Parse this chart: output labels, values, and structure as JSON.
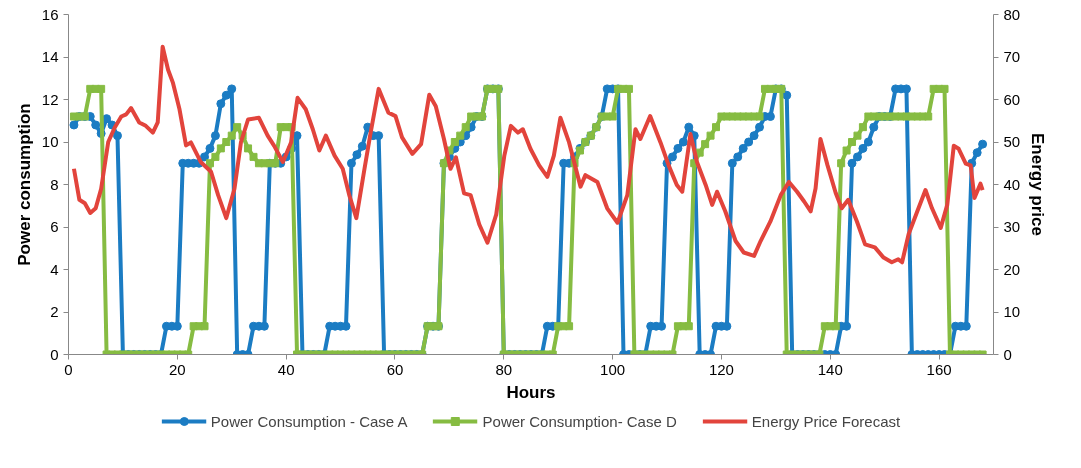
{
  "chart_data": {
    "type": "line",
    "xlabel": "Hours",
    "ylabel": "Power consumption",
    "y2label": "Energy price",
    "x": [
      1,
      2,
      3,
      4,
      5,
      6,
      7,
      8,
      9,
      10,
      11,
      12,
      13,
      14,
      15,
      16,
      17,
      18,
      19,
      20,
      21,
      22,
      23,
      24,
      25,
      26,
      27,
      28,
      29,
      30,
      31,
      32,
      33,
      34,
      35,
      36,
      37,
      38,
      39,
      40,
      41,
      42,
      43,
      44,
      45,
      46,
      47,
      48,
      49,
      50,
      51,
      52,
      53,
      54,
      55,
      56,
      57,
      58,
      59,
      60,
      61,
      62,
      63,
      64,
      65,
      66,
      67,
      68,
      69,
      70,
      71,
      72,
      73,
      74,
      75,
      76,
      77,
      78,
      79,
      80,
      81,
      82,
      83,
      84,
      85,
      86,
      87,
      88,
      89,
      90,
      91,
      92,
      93,
      94,
      95,
      96,
      97,
      98,
      99,
      100,
      101,
      102,
      103,
      104,
      105,
      106,
      107,
      108,
      109,
      110,
      111,
      112,
      113,
      114,
      115,
      116,
      117,
      118,
      119,
      120,
      121,
      122,
      123,
      124,
      125,
      126,
      127,
      128,
      129,
      130,
      131,
      132,
      133,
      134,
      135,
      136,
      137,
      138,
      139,
      140,
      141,
      142,
      143,
      144,
      145,
      146,
      147,
      148,
      149,
      150,
      151,
      152,
      153,
      154,
      155,
      156,
      157,
      158,
      159,
      160,
      161,
      162,
      163,
      164,
      165,
      166,
      167,
      168
    ],
    "xlim": [
      0,
      170
    ],
    "xticks": [
      0,
      20,
      40,
      60,
      80,
      100,
      120,
      140,
      160
    ],
    "ylim": [
      0,
      16
    ],
    "yticks": [
      0,
      2,
      4,
      6,
      8,
      10,
      12,
      14,
      16
    ],
    "y2lim": [
      0,
      80
    ],
    "y2ticks": [
      0,
      10,
      20,
      30,
      40,
      50,
      60,
      70,
      80
    ],
    "grid": false,
    "legend": "bottom",
    "line_style": "solid",
    "series": [
      {
        "name": "Power Consumption - Case A",
        "color": "#1b7cc3",
        "marker": "circle",
        "values": [
          10.8,
          11.2,
          11.2,
          11.2,
          10.8,
          10.4,
          11.1,
          10.8,
          10.3,
          0,
          0,
          0,
          0,
          0,
          0,
          0,
          0,
          1.33,
          1.33,
          1.33,
          9,
          9,
          9,
          9,
          9.3,
          9.7,
          10.3,
          11.8,
          12.2,
          12.5,
          0,
          0,
          0,
          1.33,
          1.33,
          1.33,
          9,
          9,
          9,
          9.3,
          9.7,
          10.3,
          0,
          0,
          0,
          0,
          0,
          1.33,
          1.33,
          1.33,
          1.33,
          9,
          9.4,
          9.8,
          10.7,
          10.3,
          10.3,
          0,
          0,
          0,
          0,
          0,
          0,
          0,
          0,
          1.33,
          1.33,
          1.33,
          9,
          9.3,
          9.7,
          10,
          10.3,
          10.7,
          11.2,
          11.2,
          12.5,
          12.5,
          12.5,
          0,
          0,
          0,
          0,
          0,
          0,
          0,
          0,
          1.33,
          1.33,
          1.33,
          9,
          9,
          9.3,
          9.7,
          10,
          10.3,
          10.7,
          11.2,
          12.5,
          12.5,
          12.5,
          0,
          0,
          0,
          0,
          0,
          1.33,
          1.33,
          1.33,
          9,
          9.3,
          9.7,
          10,
          10.7,
          10.3,
          0,
          0,
          0,
          1.33,
          1.33,
          1.33,
          9,
          9.3,
          9.7,
          10,
          10.3,
          10.7,
          11.2,
          11.2,
          12.5,
          12.5,
          12.2,
          0,
          0,
          0,
          0,
          0,
          0,
          0,
          0,
          0,
          1.33,
          1.33,
          9,
          9.3,
          9.7,
          10,
          10.7,
          11.2,
          11.2,
          11.2,
          12.5,
          12.5,
          12.5,
          0,
          0,
          0,
          0,
          0,
          0,
          0,
          0,
          1.33,
          1.33,
          1.33,
          9,
          9.5,
          9.9
        ]
      },
      {
        "name": "Power Consumption- Case D",
        "color": "#86bc42",
        "marker": "square",
        "values": [
          11.2,
          11.2,
          11.2,
          12.5,
          12.5,
          12.5,
          0,
          0,
          0,
          0,
          0,
          0,
          0,
          0,
          0,
          0,
          0,
          0,
          0,
          0,
          0,
          0,
          1.33,
          1.33,
          1.33,
          9,
          9.3,
          9.7,
          10,
          10.3,
          10.7,
          10.3,
          9.7,
          9.3,
          9,
          9,
          9,
          9,
          10.7,
          10.7,
          10.7,
          0,
          0,
          0,
          0,
          0,
          0,
          0,
          0,
          0,
          0,
          0,
          0,
          0,
          0,
          0,
          0,
          0,
          0,
          0,
          0,
          0,
          0,
          0,
          0,
          1.33,
          1.33,
          1.33,
          9,
          9.6,
          10,
          10.3,
          10.7,
          11.2,
          11.2,
          11.2,
          12.5,
          12.5,
          12.5,
          0,
          0,
          0,
          0,
          0,
          0,
          0,
          0,
          0,
          0,
          1.33,
          1.33,
          1.33,
          9,
          9.6,
          10,
          10.3,
          10.7,
          11.2,
          11.2,
          11.2,
          12.5,
          12.5,
          12.5,
          0,
          0,
          0,
          0,
          0,
          0,
          0,
          0,
          1.33,
          1.33,
          1.33,
          9,
          9.5,
          9.9,
          10.3,
          10.7,
          11.2,
          11.2,
          11.2,
          11.2,
          11.2,
          11.2,
          11.2,
          11.2,
          12.5,
          12.5,
          12.5,
          12.5,
          0,
          0,
          0,
          0,
          0,
          0,
          0,
          1.33,
          1.33,
          1.33,
          9,
          9.6,
          10,
          10.3,
          10.7,
          11.2,
          11.2,
          11.2,
          11.2,
          11.2,
          11.2,
          11.2,
          11.2,
          11.2,
          11.2,
          11.2,
          11.2,
          12.5,
          12.5,
          12.5,
          0,
          0,
          0,
          0,
          0,
          0,
          0
        ]
      },
      {
        "name": "Energy Price Forecast",
        "color": "#e2443c",
        "marker": "none",
        "axis": "y2",
        "x": [
          1,
          2,
          3,
          4,
          5,
          6,
          7.3,
          8.5,
          9.7,
          10.6,
          11.5,
          13,
          14.2,
          15.5,
          16.4,
          17.3,
          18.3,
          19.2,
          20.4,
          21.6,
          22.5,
          24.3,
          26.2,
          27.5,
          29,
          30.5,
          31.7,
          33,
          35,
          36.6,
          37.8,
          39.4,
          40.9,
          42.1,
          43.6,
          44.9,
          46.1,
          47.3,
          48.9,
          50.4,
          51.6,
          52.9,
          54.4,
          55.5,
          57,
          58.8,
          60.1,
          61.3,
          63.2,
          64.8,
          66.3,
          67.5,
          69,
          70.2,
          71.2,
          72.7,
          73.9,
          75.5,
          77,
          78.6,
          80.1,
          81.3,
          82.6,
          83.5,
          84.9,
          86.5,
          88,
          89.2,
          90.4,
          92,
          94.1,
          95,
          97.2,
          99,
          100.9,
          102.7,
          104.2,
          105.1,
          106.9,
          108.8,
          110.3,
          111.8,
          112.8,
          114.3,
          115.5,
          117.1,
          118.3,
          119.2,
          120.7,
          122.6,
          124.1,
          126,
          127.2,
          129,
          130.9,
          132.4,
          133.9,
          135.2,
          136.4,
          137.3,
          138.2,
          139.5,
          141,
          142.1,
          143.3,
          144.9,
          146.4,
          148.2,
          149.8,
          151.3,
          152.5,
          153.2,
          154.4,
          156,
          157.5,
          158.7,
          160.3,
          161.5,
          162.7,
          163.6,
          164.9,
          165.8,
          166.5,
          167.6,
          168
        ],
        "values": [
          43.7,
          36.4,
          35.6,
          33.3,
          34.4,
          39,
          50,
          53.4,
          56,
          56.5,
          58,
          54.6,
          53.8,
          52.2,
          54.6,
          72.4,
          67,
          63.9,
          57.7,
          49.2,
          49.9,
          45.3,
          43,
          37.5,
          32.1,
          39,
          50,
          55.3,
          55.7,
          51.5,
          49.1,
          45.3,
          49.9,
          60.4,
          57.7,
          53,
          48,
          51.5,
          46.8,
          43.7,
          37.5,
          32.1,
          43.7,
          52,
          62.5,
          56.9,
          56.1,
          51.1,
          47.2,
          49.5,
          61.1,
          58.4,
          50.7,
          43.7,
          46.4,
          37.9,
          37.5,
          30.6,
          26.3,
          32.9,
          46.8,
          53.8,
          52.2,
          53,
          48.4,
          44.5,
          41.8,
          46.8,
          55.7,
          49.9,
          39.5,
          42.2,
          40.6,
          34.4,
          31,
          37.5,
          53,
          50.7,
          56.1,
          49.9,
          44.5,
          39.9,
          38.3,
          51.9,
          45.3,
          39.9,
          35.2,
          38.3,
          33.7,
          26.7,
          24,
          23.2,
          26.7,
          31.3,
          37.5,
          40.6,
          38.3,
          36,
          33.7,
          39.1,
          50.7,
          44.5,
          38,
          34.4,
          36.4,
          31.3,
          25.9,
          25.2,
          22.8,
          21.7,
          22.4,
          21.7,
          28.3,
          33.7,
          38.7,
          34.4,
          29.8,
          35.2,
          49.1,
          48.4,
          44.9,
          44.5,
          36.8,
          40.2,
          38.7
        ]
      }
    ]
  }
}
